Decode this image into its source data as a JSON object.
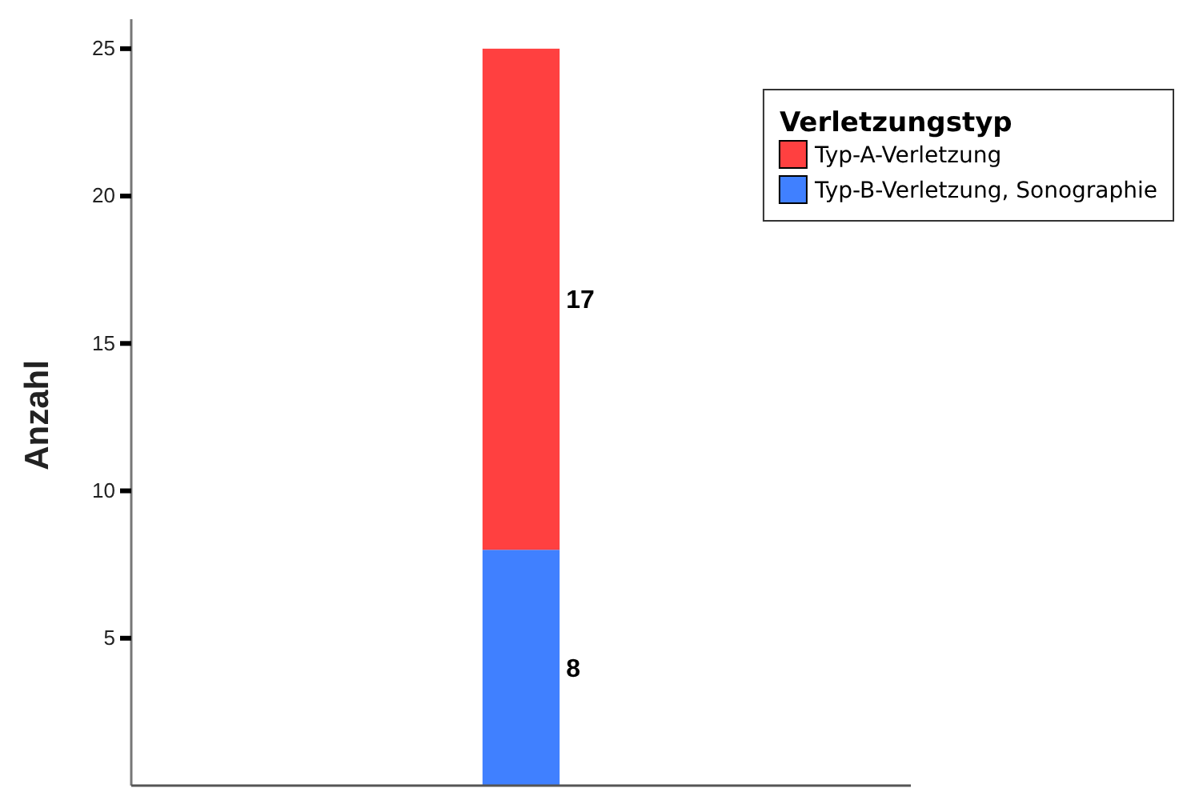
{
  "chart_data": {
    "type": "bar",
    "categories": [
      null
    ],
    "series": [
      {
        "name": "Typ-B-Verletzung, Sonographie",
        "color": "#4080ff",
        "values": [
          8
        ]
      },
      {
        "name": "Typ-A-Verletzung",
        "color": "#ff4040",
        "values": [
          17
        ]
      }
    ],
    "stacked": true,
    "ylabel": "Anzahl",
    "legend_title": "Verletzungstyp",
    "ylim": [
      0,
      26
    ],
    "yticks": [
      5,
      10,
      15,
      20,
      25
    ],
    "data_labels": true,
    "legend": "top right",
    "grid": false
  }
}
